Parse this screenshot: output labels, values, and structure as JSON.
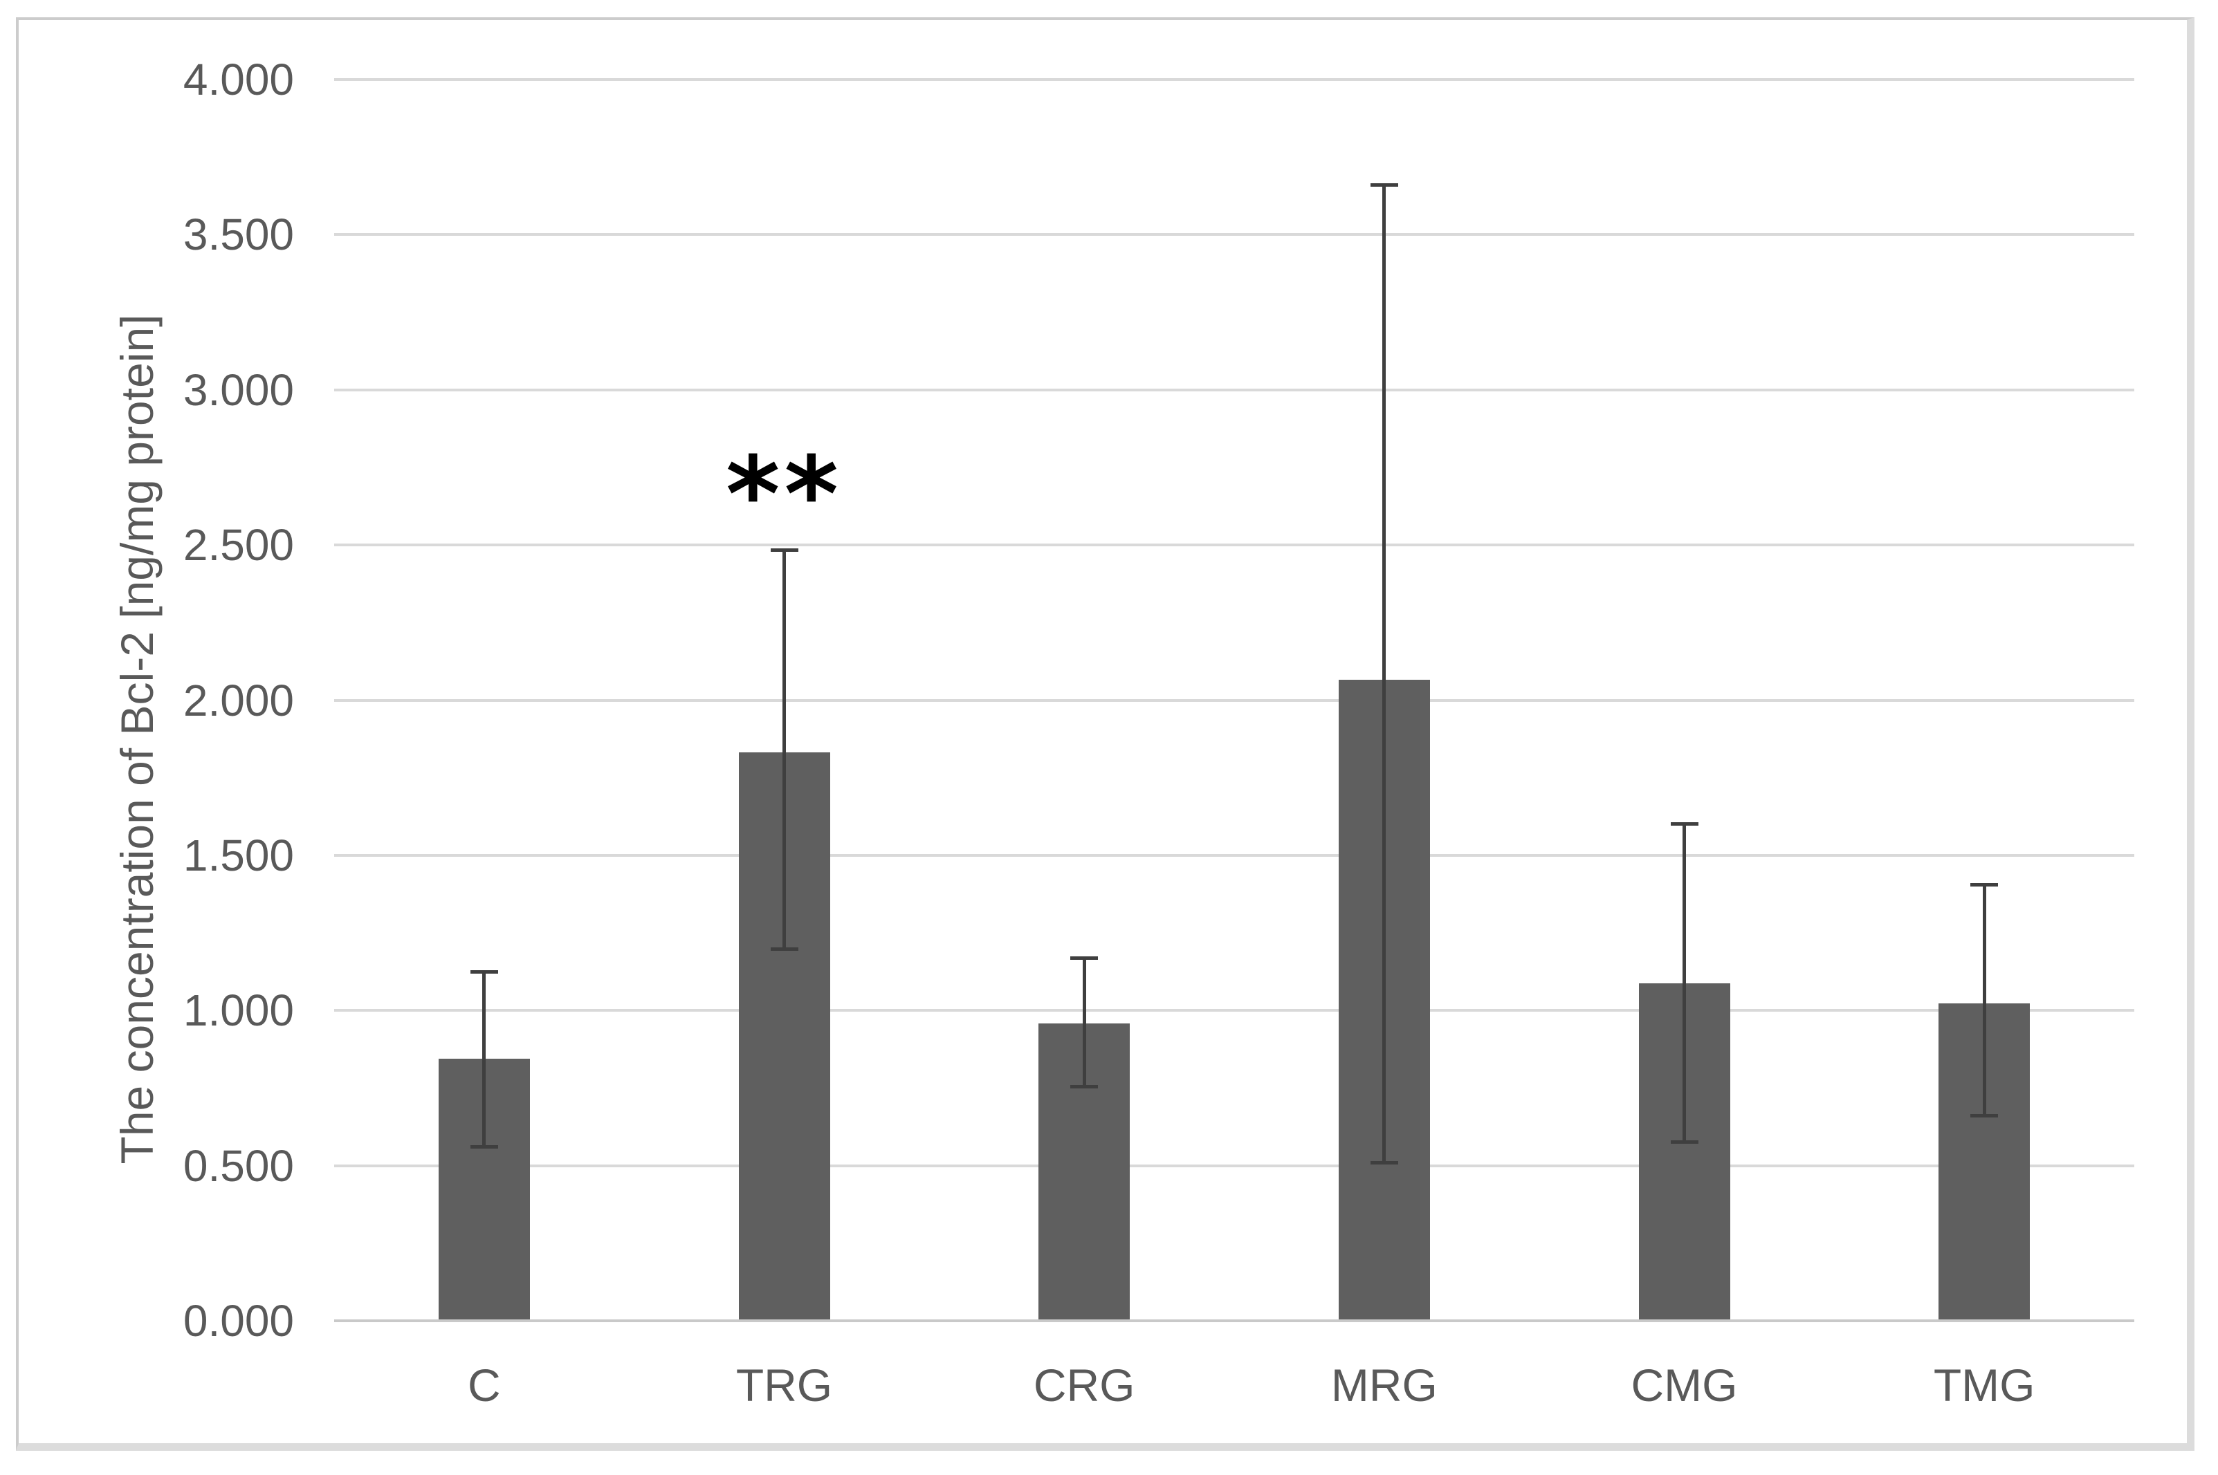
{
  "figure": {
    "background": "#ffffff",
    "frame_color": "#d4d4d4"
  },
  "chart_data": {
    "type": "bar",
    "title": "",
    "xlabel": "",
    "ylabel": "The concentration of Bcl-2 [ng/mg protein]",
    "categories": [
      "C",
      "TRG",
      "CRG",
      "MRG",
      "CMG",
      "TMG"
    ],
    "values": [
      0.845,
      1.832,
      0.958,
      2.066,
      1.088,
      1.023
    ],
    "error_upper_abs": [
      1.125,
      2.483,
      1.168,
      3.66,
      1.601,
      1.406
    ],
    "error_lower_abs": [
      0.56,
      1.198,
      0.755,
      0.51,
      0.576,
      0.66
    ],
    "annotations": [
      {
        "category": "TRG",
        "text": "**",
        "y": 2.66
      }
    ],
    "ylim": [
      0,
      4
    ],
    "ytick_labels": [
      "0.000",
      "0.500",
      "1.000",
      "1.500",
      "2.000",
      "2.500",
      "3.000",
      "3.500",
      "4.000"
    ],
    "grid": true,
    "legend": false,
    "bar_color": "#5f5f5f",
    "error_color": "#3f3f3f",
    "gridline_color": "#d9d9d9",
    "axis_line_color": "#c9c9c9",
    "text_color": "#595959"
  }
}
